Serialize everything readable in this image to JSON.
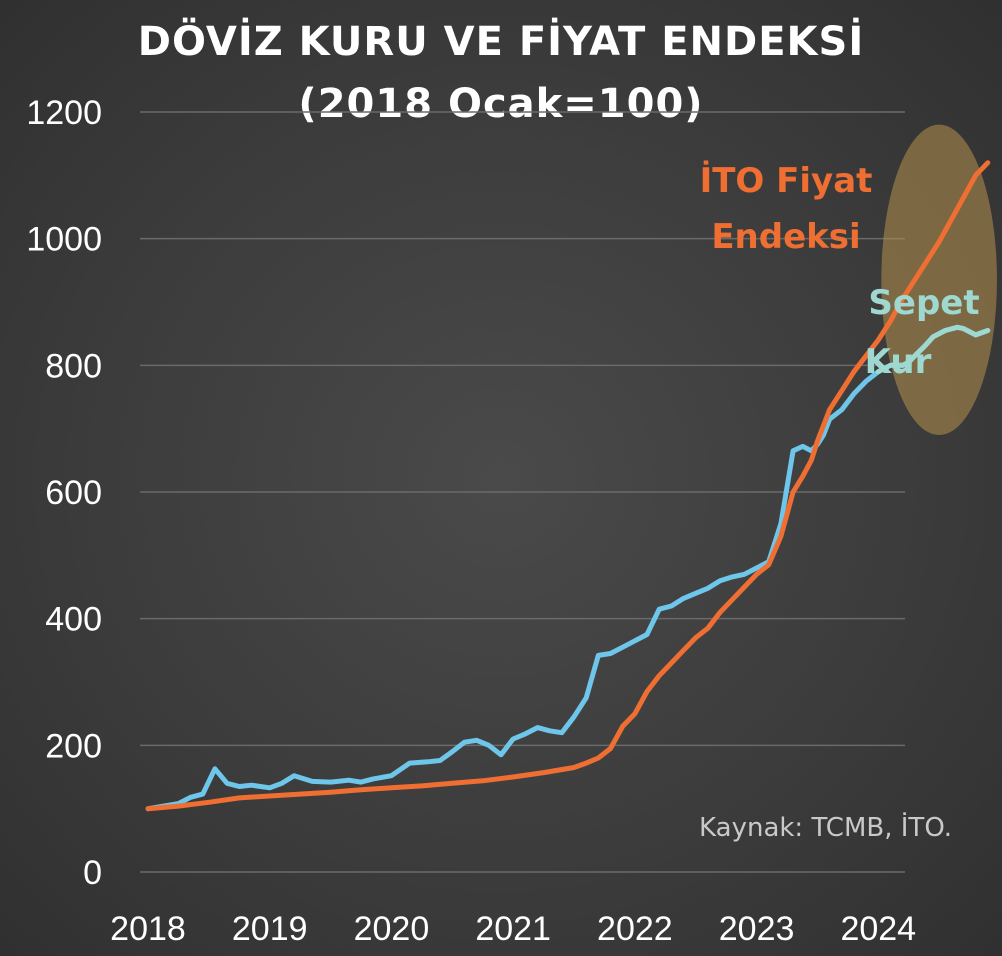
{
  "title": {
    "line1": "DÖVİZ KURU VE FİYAT ENDEKSİ",
    "line2": "(2018 Ocak=100)"
  },
  "source": "Kaynak: TCMB, İTO.",
  "chart_data": {
    "type": "line",
    "title": "DÖVİZ KURU VE FİYAT ENDEKSİ (2018 Ocak=100)",
    "xlabel": "",
    "ylabel": "",
    "xlim": [
      2018.0,
      2025.0
    ],
    "ylim": [
      0,
      1200
    ],
    "yticks": [
      0,
      200,
      400,
      600,
      800,
      1000,
      1200
    ],
    "xticks": [
      2018,
      2019,
      2020,
      2021,
      2022,
      2023,
      2024
    ],
    "xtick_labels": [
      "2018",
      "2019",
      "2020",
      "2021",
      "2022",
      "2023",
      "2024"
    ],
    "grid": "horizontal",
    "legend": "inline labels",
    "series": [
      {
        "name": "Sepet Kur",
        "label_lines": [
          "Sepet",
          "Kur"
        ],
        "color": "#6ec6ea",
        "highlight_color": "#9fd8d0",
        "x": [
          2018.0,
          2018.25,
          2018.35,
          2018.45,
          2018.55,
          2018.65,
          2018.75,
          2018.85,
          2019.0,
          2019.1,
          2019.2,
          2019.35,
          2019.5,
          2019.65,
          2019.75,
          2019.85,
          2020.0,
          2020.15,
          2020.3,
          2020.4,
          2020.5,
          2020.6,
          2020.7,
          2020.8,
          2020.9,
          2021.0,
          2021.1,
          2021.2,
          2021.3,
          2021.4,
          2021.5,
          2021.6,
          2021.7,
          2021.8,
          2021.9,
          2022.0,
          2022.1,
          2022.2,
          2022.3,
          2022.4,
          2022.5,
          2022.6,
          2022.7,
          2022.8,
          2022.9,
          2023.0,
          2023.1,
          2023.2,
          2023.3,
          2023.38,
          2023.45,
          2023.5,
          2023.55,
          2023.6,
          2023.7,
          2023.8,
          2023.9,
          2024.0,
          2024.1,
          2024.2,
          2024.25,
          2024.3,
          2024.38,
          2024.45,
          2024.55,
          2024.65,
          2024.7,
          2024.8,
          2024.9
        ],
        "y": [
          100,
          108,
          118,
          123,
          163,
          140,
          135,
          137,
          133,
          140,
          152,
          143,
          142,
          145,
          142,
          147,
          152,
          172,
          174,
          176,
          190,
          205,
          208,
          200,
          185,
          210,
          218,
          228,
          223,
          220,
          245,
          275,
          342,
          345,
          355,
          365,
          375,
          415,
          420,
          432,
          440,
          448,
          460,
          466,
          470,
          480,
          490,
          550,
          665,
          672,
          665,
          675,
          690,
          715,
          730,
          755,
          775,
          790,
          800,
          800,
          805,
          815,
          830,
          845,
          855,
          860,
          858,
          848,
          855
        ]
      },
      {
        "name": "İTO Fiyat Endeksi",
        "label_lines": [
          "İTO Fiyat",
          "Endeksi"
        ],
        "color": "#ef6f33",
        "x": [
          2018.0,
          2018.25,
          2018.5,
          2018.75,
          2019.0,
          2019.25,
          2019.5,
          2019.75,
          2020.0,
          2020.25,
          2020.5,
          2020.75,
          2021.0,
          2021.25,
          2021.5,
          2021.6,
          2021.7,
          2021.8,
          2021.9,
          2022.0,
          2022.1,
          2022.2,
          2022.3,
          2022.4,
          2022.5,
          2022.6,
          2022.7,
          2022.8,
          2022.9,
          2023.0,
          2023.1,
          2023.2,
          2023.3,
          2023.38,
          2023.45,
          2023.5,
          2023.6,
          2023.7,
          2023.8,
          2023.9,
          2024.0,
          2024.1,
          2024.2,
          2024.3,
          2024.4,
          2024.5,
          2024.6,
          2024.7,
          2024.8,
          2024.9
        ],
        "y": [
          100,
          104,
          110,
          117,
          120,
          123,
          126,
          130,
          133,
          136,
          140,
          144,
          150,
          157,
          165,
          172,
          180,
          195,
          230,
          250,
          285,
          310,
          330,
          350,
          370,
          385,
          410,
          430,
          450,
          470,
          485,
          530,
          600,
          625,
          650,
          680,
          730,
          760,
          790,
          815,
          840,
          870,
          905,
          935,
          965,
          995,
          1030,
          1065,
          1100,
          1120
        ]
      }
    ],
    "annotations": [
      {
        "type": "highlight-ellipse",
        "color": "#b4904a",
        "covers_x": [
          2024.0,
          2025.0
        ],
        "covers_y": [
          690,
          1180
        ]
      }
    ]
  }
}
